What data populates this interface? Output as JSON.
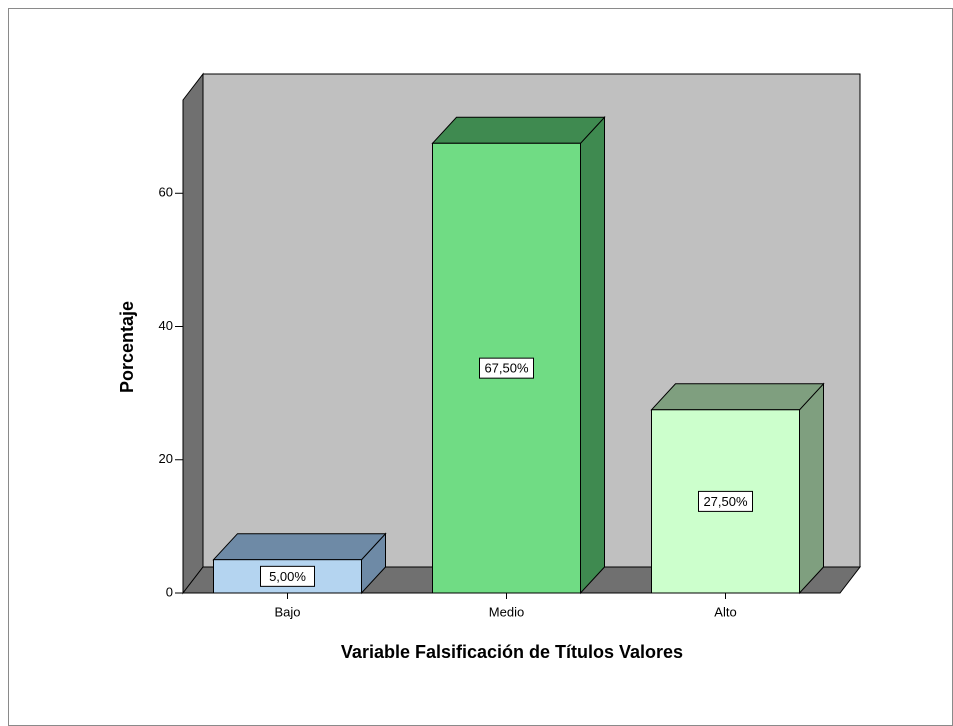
{
  "chart_data": {
    "type": "bar3d",
    "x_label": "Variable Falsificación de Títulos Valores",
    "y_label": "Porcentaje",
    "categories": [
      "Bajo",
      "Medio",
      "Alto"
    ],
    "values": [
      5,
      67.5,
      27.5
    ],
    "value_labels": [
      "5,00%",
      "67,50%",
      "27,50%"
    ],
    "colors": [
      "#b4d4f0",
      "#70dc84",
      "#ccffcc"
    ],
    "side_colors": [
      "#6e8aa6",
      "#3f8a50",
      "#7f9f7f"
    ],
    "ylim": [
      0,
      74
    ],
    "yticks": [
      0,
      20,
      40,
      60
    ]
  }
}
